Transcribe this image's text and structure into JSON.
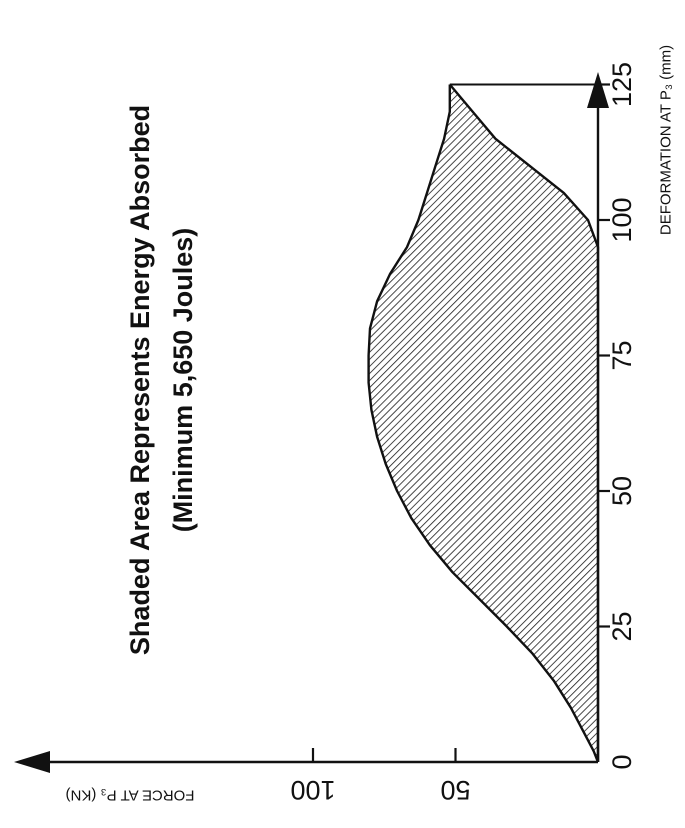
{
  "chart_data": {
    "type": "area",
    "title": "",
    "annotation": [
      "Shaded Area Represents Energy Absorbed",
      "(Minimum 5,650 Joules)"
    ],
    "xlabel": "DEFORMATION AT P₃ (mm)",
    "ylabel": "FORCE AT P₃ (KN)",
    "x_ticks": [
      "0",
      "25",
      "50",
      "75",
      "100",
      "125"
    ],
    "x_tick_values": [
      0,
      25,
      50,
      75,
      100,
      125
    ],
    "y_ticks": [
      "50",
      "100"
    ],
    "y_tick_values": [
      50,
      100
    ],
    "xlim": [
      0,
      140
    ],
    "ylim": [
      0,
      130
    ],
    "grid": false,
    "orientation": "rotated 90° counter-clockwise",
    "upper_curve": {
      "x": [
        0,
        2,
        5,
        10,
        15,
        20,
        25,
        30,
        35,
        40,
        45,
        50,
        55,
        60,
        65,
        70,
        75,
        80,
        85,
        90,
        95,
        100,
        105,
        110,
        115,
        120,
        125
      ],
      "y": [
        0,
        1.5,
        4.5,
        9.5,
        15.5,
        23,
        32,
        41.5,
        51,
        59,
        65.5,
        70.5,
        74.5,
        77.5,
        79.5,
        80.5,
        80.5,
        80,
        77.5,
        73,
        67,
        63,
        60,
        57,
        54,
        52,
        52
      ]
    },
    "lower_curve": {
      "x": [
        0,
        10,
        20,
        25,
        30,
        40,
        50,
        60,
        70,
        80,
        90,
        95,
        100,
        105,
        110,
        115,
        120,
        125
      ],
      "y": [
        0,
        0,
        0,
        0,
        0,
        0,
        0,
        0,
        0,
        0,
        0,
        0,
        3.5,
        12,
        24,
        36,
        44,
        52
      ]
    },
    "peak_reference_line": {
      "y": 52,
      "x_from": 0,
      "x_to": 125
    }
  }
}
